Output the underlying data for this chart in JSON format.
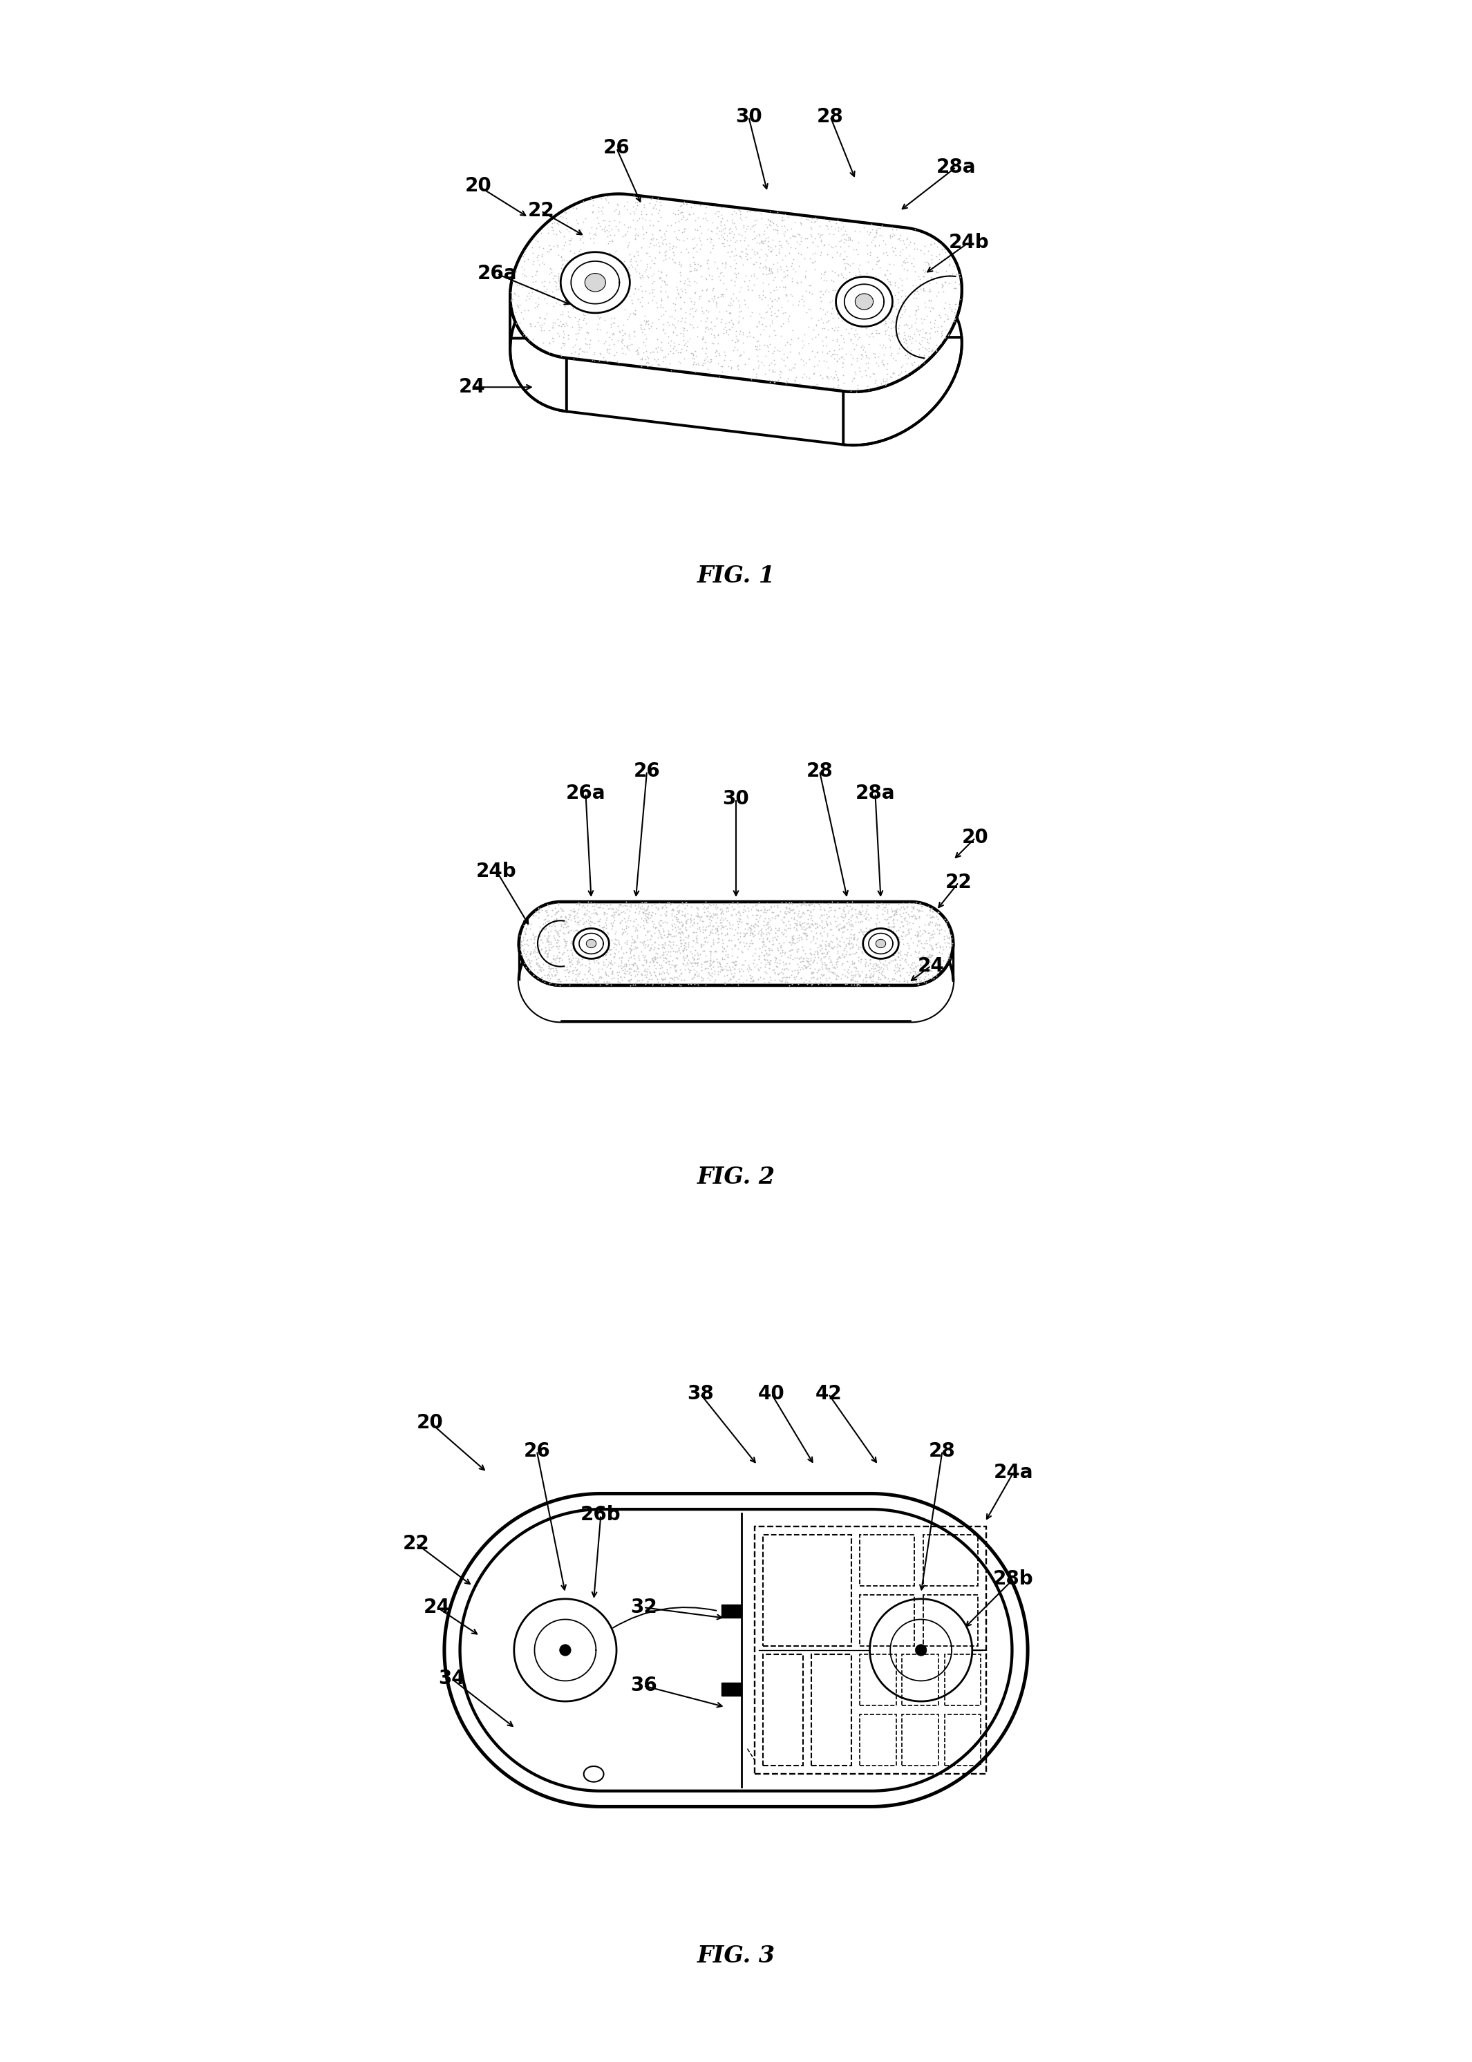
{
  "background_color": "#ffffff",
  "line_color": "#000000",
  "stipple_color": "#bbbbbb",
  "lw_main": 2.8,
  "lw_med": 2.0,
  "lw_thin": 1.4,
  "fs_label": 20,
  "fs_caption": 24,
  "fig1": {
    "caption": "FIG. 1"
  },
  "fig2": {
    "caption": "FIG. 2"
  },
  "fig3": {
    "caption": "FIG. 3"
  }
}
